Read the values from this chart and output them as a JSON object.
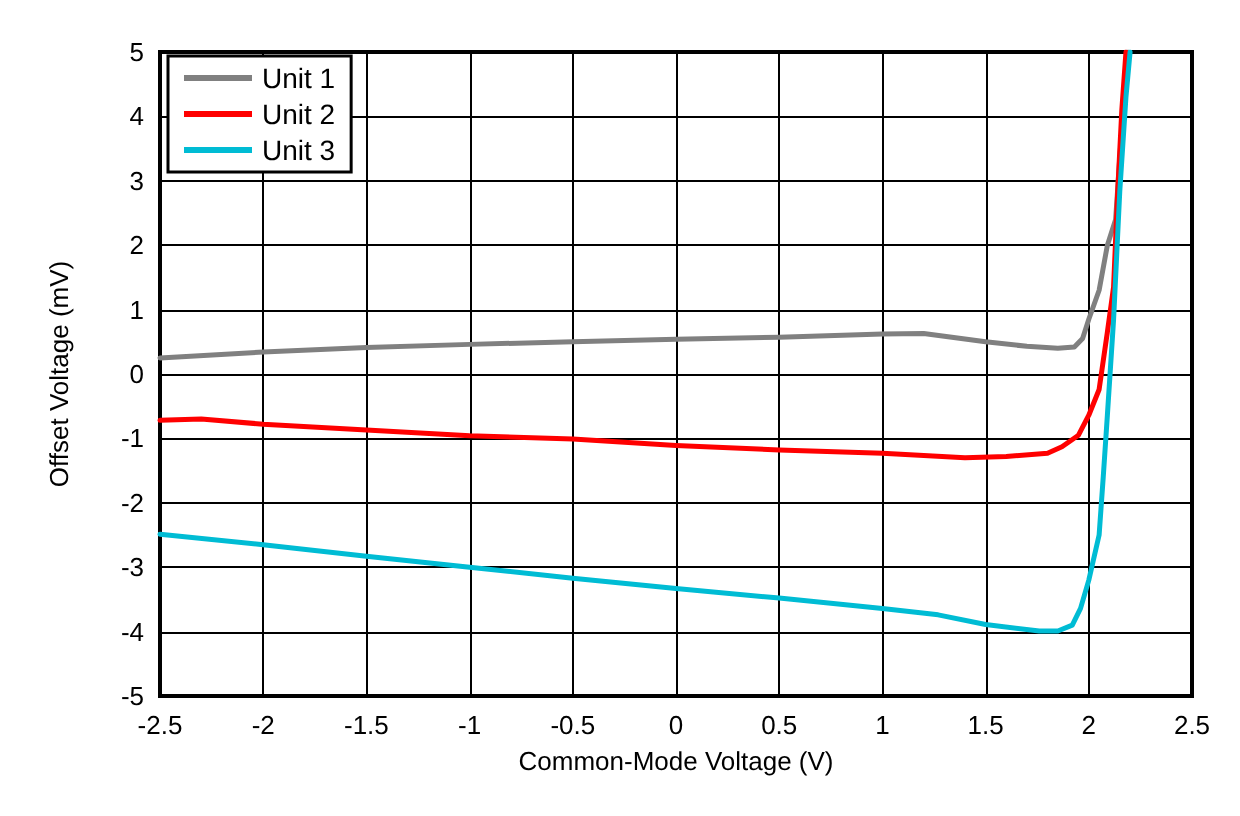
{
  "chart_data": {
    "type": "line",
    "xlabel": "Common-Mode Voltage (V)",
    "ylabel": "Offset Voltage (mV)",
    "xlim": [
      -2.5,
      2.5
    ],
    "xticks": [
      -2.5,
      -2,
      -1.5,
      -1,
      -0.5,
      0,
      0.5,
      1,
      1.5,
      2,
      2.5
    ],
    "ylim": [
      -5,
      5
    ],
    "yticks": [
      -5,
      -4,
      -3,
      -2,
      -1,
      0,
      1,
      2,
      3,
      4,
      5
    ],
    "grid": true,
    "legend": "top left",
    "marker": "none",
    "line_style": "solid",
    "series": [
      {
        "name": "Unit 1",
        "color": "#808080",
        "x": [
          -2.5,
          -2,
          -1.5,
          -1,
          -0.5,
          0,
          0.5,
          1,
          1.2,
          1.5,
          1.7,
          1.85,
          1.93,
          1.97,
          2.0,
          2.05,
          2.09,
          2.13,
          2.17,
          2.19
        ],
        "values": [
          0.25,
          0.34,
          0.41,
          0.46,
          0.5,
          0.54,
          0.57,
          0.62,
          0.63,
          0.5,
          0.43,
          0.4,
          0.42,
          0.55,
          0.85,
          1.3,
          2.0,
          2.4,
          4.3,
          5
        ]
      },
      {
        "name": "Unit 2",
        "color": "#ff0000",
        "x": [
          -2.5,
          -2.3,
          -2,
          -1.5,
          -1,
          -0.5,
          0,
          0.5,
          1,
          1.4,
          1.6,
          1.8,
          1.87,
          1.95,
          2.0,
          2.05,
          2.09,
          2.12,
          2.14,
          2.16,
          2.18
        ],
        "values": [
          -0.72,
          -0.7,
          -0.78,
          -0.87,
          -0.96,
          -1.01,
          -1.11,
          -1.18,
          -1.23,
          -1.3,
          -1.28,
          -1.23,
          -1.13,
          -0.95,
          -0.64,
          -0.24,
          0.65,
          1.35,
          2.83,
          4.1,
          5
        ]
      },
      {
        "name": "Unit 3",
        "color": "#00bcd4",
        "x": [
          -2.5,
          -2,
          -1.5,
          -1,
          -0.5,
          0,
          0.5,
          1,
          1.27,
          1.5,
          1.76,
          1.85,
          1.92,
          1.96,
          2.0,
          2.05,
          2.07,
          2.09,
          2.12,
          2.15,
          2.18,
          2.2
        ],
        "values": [
          -2.49,
          -2.65,
          -2.83,
          -3.0,
          -3.17,
          -3.33,
          -3.48,
          -3.64,
          -3.74,
          -3.89,
          -3.99,
          -3.99,
          -3.9,
          -3.64,
          -3.2,
          -2.5,
          -1.6,
          -0.64,
          0.84,
          2.83,
          4.3,
          5
        ]
      }
    ]
  }
}
